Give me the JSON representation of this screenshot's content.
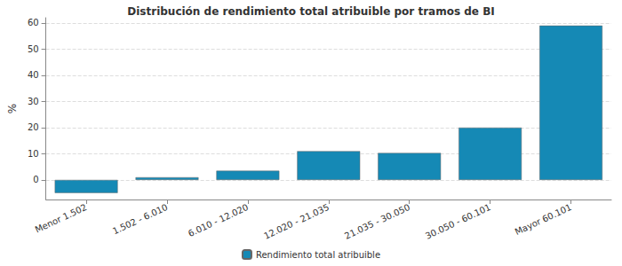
{
  "chart_data": {
    "type": "bar",
    "title": "Distribución de rendimiento total atribuible por tramos de BI",
    "y_label": "%",
    "categories": [
      "Menor 1.502",
      "1.502 - 6.010",
      "6.010 - 12.020",
      "12.020 - 21.035",
      "21.035 - 30.050",
      "30.050 - 60.101",
      "Mayor 60.101"
    ],
    "series": [
      {
        "name": "Rendimiento total atribuible",
        "color": "#1589b5",
        "values": [
          -5,
          1,
          3.5,
          11,
          10.3,
          20,
          59
        ]
      }
    ],
    "ylim": [
      -7.5,
      62
    ],
    "yticks": [
      0,
      10,
      20,
      30,
      40,
      50,
      60
    ],
    "grid": true,
    "legend": "bottom"
  }
}
